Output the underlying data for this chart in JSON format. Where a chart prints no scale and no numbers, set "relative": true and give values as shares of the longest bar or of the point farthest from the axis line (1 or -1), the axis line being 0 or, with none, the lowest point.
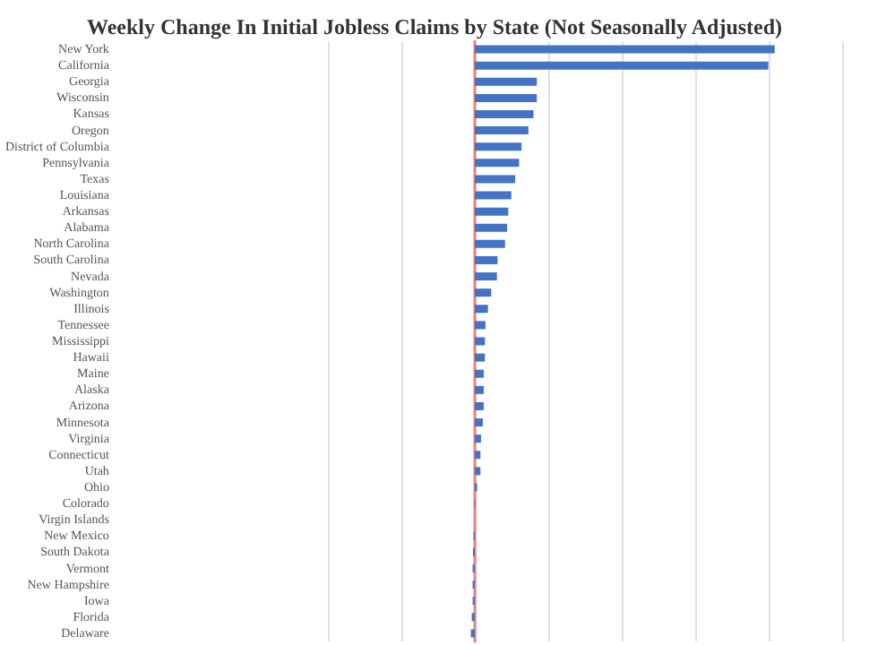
{
  "chart_data": {
    "type": "bar",
    "orientation": "horizontal",
    "relative": true,
    "title": "Weekly Change In Initial Jobless Claims by State (Not Seasonally Adjusted)",
    "categories": [
      "New York",
      "California",
      "Georgia",
      "Wisconsin",
      "Kansas",
      "Oregon",
      "District of Columbia",
      "Pennsylvania",
      "Texas",
      "Louisiana",
      "Arkansas",
      "Alabama",
      "North Carolina",
      "South Carolina",
      "Nevada",
      "Washington",
      "Illinois",
      "Tennessee",
      "Mississippi",
      "Hawaii",
      "Maine",
      "Alaska",
      "Arizona",
      "Minnesota",
      "Virginia",
      "Connecticut",
      "Utah",
      "Ohio",
      "Colorado",
      "Virgin Islands",
      "New Mexico",
      "South Dakota",
      "Vermont",
      "New Hampshire",
      "Iowa",
      "Florida",
      "Delaware"
    ],
    "values": [
      1,
      0.979,
      0.207,
      0.207,
      0.196,
      0.179,
      0.156,
      0.148,
      0.135,
      0.122,
      0.112,
      0.108,
      0.101,
      0.076,
      0.074,
      0.055,
      0.044,
      0.036,
      0.034,
      0.034,
      0.03,
      0.03,
      0.03,
      0.027,
      0.021,
      0.019,
      0.019,
      0.008,
      0.002,
      0,
      -0.004,
      -0.006,
      -0.007,
      -0.007,
      -0.007,
      -0.01,
      -0.013
    ],
    "color": "#4472c4",
    "grid": "x"
  }
}
